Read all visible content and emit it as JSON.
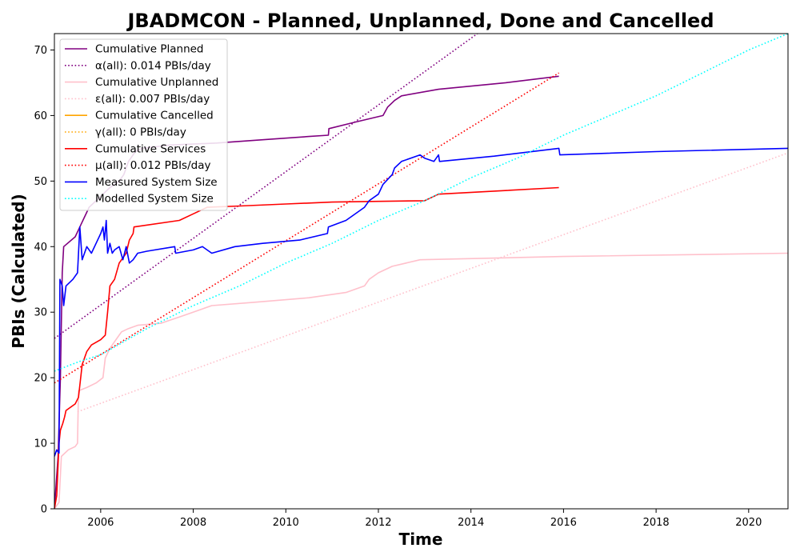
{
  "chart_data": {
    "type": "line",
    "title": "JBADMCON - Planned, Unplanned, Done  and Cancelled",
    "xlabel": "Time",
    "ylabel": "PBIs (Calculated)",
    "xlim": [
      2005.0,
      2020.85
    ],
    "ylim": [
      0,
      72.5
    ],
    "xticks": [
      2006,
      2008,
      2010,
      2012,
      2014,
      2016,
      2018,
      2020
    ],
    "yticks": [
      0,
      10,
      20,
      30,
      40,
      50,
      60,
      70
    ],
    "grid": false,
    "legend_position": "top-left",
    "series": [
      {
        "name": "Cumulative Planned",
        "color": "#800080",
        "style": "solid",
        "points": [
          [
            2005.0,
            0
          ],
          [
            2005.08,
            8
          ],
          [
            2005.13,
            20
          ],
          [
            2005.17,
            36
          ],
          [
            2005.2,
            40
          ],
          [
            2005.45,
            41.5
          ],
          [
            2005.55,
            43
          ],
          [
            2005.65,
            44.5
          ],
          [
            2005.75,
            46
          ],
          [
            2005.9,
            47
          ],
          [
            2006.05,
            48
          ],
          [
            2006.2,
            49
          ],
          [
            2006.4,
            50
          ],
          [
            2006.5,
            51
          ],
          [
            2006.6,
            53
          ],
          [
            2006.75,
            54.5
          ],
          [
            2006.9,
            55
          ],
          [
            2007.5,
            55.5
          ],
          [
            2008.5,
            55.8
          ],
          [
            2009.5,
            56.3
          ],
          [
            2010.5,
            56.8
          ],
          [
            2010.92,
            57
          ],
          [
            2010.93,
            58
          ],
          [
            2011.5,
            59
          ],
          [
            2012.1,
            60
          ],
          [
            2012.2,
            61.3
          ],
          [
            2012.35,
            62.3
          ],
          [
            2012.5,
            63
          ],
          [
            2013.3,
            64
          ],
          [
            2014.75,
            65
          ],
          [
            2015.9,
            66
          ]
        ]
      },
      {
        "name": "α(all): 0.014 PBIs/day",
        "color": "#800080",
        "style": "dotted",
        "points": [
          [
            2005.0,
            26
          ],
          [
            2014.2,
            72.8
          ]
        ]
      },
      {
        "name": "Cumulative Unplanned",
        "color": "#ffc0cb",
        "style": "solid",
        "points": [
          [
            2005.0,
            0
          ],
          [
            2005.1,
            1
          ],
          [
            2005.15,
            8
          ],
          [
            2005.3,
            9
          ],
          [
            2005.45,
            9.5
          ],
          [
            2005.5,
            10
          ],
          [
            2005.52,
            18
          ],
          [
            2005.7,
            18.5
          ],
          [
            2005.9,
            19.2
          ],
          [
            2006.05,
            20
          ],
          [
            2006.1,
            23
          ],
          [
            2006.2,
            24.5
          ],
          [
            2006.35,
            26
          ],
          [
            2006.45,
            27
          ],
          [
            2006.6,
            27.5
          ],
          [
            2006.8,
            28
          ],
          [
            2007.3,
            28.3
          ],
          [
            2007.8,
            29.5
          ],
          [
            2008.2,
            30.5
          ],
          [
            2008.4,
            31
          ],
          [
            2009.3,
            31.5
          ],
          [
            2010.5,
            32.2
          ],
          [
            2011.3,
            33
          ],
          [
            2011.7,
            34
          ],
          [
            2011.8,
            35
          ],
          [
            2012.0,
            36
          ],
          [
            2012.3,
            37
          ],
          [
            2012.9,
            38
          ],
          [
            2016.0,
            38.5
          ],
          [
            2020.85,
            39
          ]
        ]
      },
      {
        "name": "ε(all): 0.007 PBIs/day",
        "color": "#ffc0cb",
        "style": "dotted",
        "points": [
          [
            2005.5,
            14.8
          ],
          [
            2020.85,
            54.3
          ]
        ]
      },
      {
        "name": "Cumulative Cancelled",
        "color": "#ffa500",
        "style": "solid",
        "points": []
      },
      {
        "name": "γ(all): 0 PBIs/day",
        "color": "#ffa500",
        "style": "dotted",
        "points": []
      },
      {
        "name": "Cumulative Services",
        "color": "#ff0000",
        "style": "solid",
        "points": [
          [
            2005.0,
            0
          ],
          [
            2005.05,
            2
          ],
          [
            2005.1,
            10
          ],
          [
            2005.13,
            12
          ],
          [
            2005.18,
            13
          ],
          [
            2005.22,
            14
          ],
          [
            2005.25,
            15
          ],
          [
            2005.45,
            16
          ],
          [
            2005.52,
            17
          ],
          [
            2005.6,
            22
          ],
          [
            2005.7,
            24
          ],
          [
            2005.8,
            25
          ],
          [
            2006.0,
            25.8
          ],
          [
            2006.1,
            26.5
          ],
          [
            2006.15,
            30
          ],
          [
            2006.2,
            34
          ],
          [
            2006.3,
            35
          ],
          [
            2006.4,
            37.5
          ],
          [
            2006.55,
            39
          ],
          [
            2006.62,
            41
          ],
          [
            2006.7,
            42
          ],
          [
            2006.72,
            43
          ],
          [
            2007.7,
            44
          ],
          [
            2008.0,
            45
          ],
          [
            2008.3,
            46
          ],
          [
            2009.0,
            46.2
          ],
          [
            2010.0,
            46.5
          ],
          [
            2011.0,
            46.8
          ],
          [
            2012.0,
            46.9
          ],
          [
            2013.0,
            47
          ],
          [
            2013.3,
            48
          ],
          [
            2015.9,
            49
          ]
        ]
      },
      {
        "name": "μ(all): 0.012 PBIs/day",
        "color": "#ff0000",
        "style": "dotted",
        "points": [
          [
            2005.0,
            19.2
          ],
          [
            2015.9,
            66.5
          ]
        ]
      },
      {
        "name": "Measured System Size",
        "color": "#0000ff",
        "style": "solid",
        "points": [
          [
            2005.0,
            8
          ],
          [
            2005.05,
            9
          ],
          [
            2005.1,
            8.5
          ],
          [
            2005.12,
            35
          ],
          [
            2005.17,
            34
          ],
          [
            2005.2,
            31
          ],
          [
            2005.25,
            34
          ],
          [
            2005.4,
            35
          ],
          [
            2005.5,
            36
          ],
          [
            2005.55,
            43
          ],
          [
            2005.6,
            38
          ],
          [
            2005.7,
            40
          ],
          [
            2005.8,
            39
          ],
          [
            2005.9,
            40.5
          ],
          [
            2006.0,
            42
          ],
          [
            2006.05,
            43
          ],
          [
            2006.08,
            41
          ],
          [
            2006.12,
            44
          ],
          [
            2006.15,
            39
          ],
          [
            2006.2,
            40.5
          ],
          [
            2006.25,
            39
          ],
          [
            2006.3,
            39.5
          ],
          [
            2006.4,
            40
          ],
          [
            2006.48,
            38
          ],
          [
            2006.55,
            40
          ],
          [
            2006.62,
            37.5
          ],
          [
            2006.7,
            38
          ],
          [
            2006.8,
            39
          ],
          [
            2007.0,
            39.3
          ],
          [
            2007.6,
            40
          ],
          [
            2007.62,
            39
          ],
          [
            2008.0,
            39.5
          ],
          [
            2008.2,
            40
          ],
          [
            2008.4,
            39
          ],
          [
            2008.9,
            40
          ],
          [
            2009.5,
            40.5
          ],
          [
            2010.3,
            41
          ],
          [
            2010.9,
            42
          ],
          [
            2010.92,
            43
          ],
          [
            2011.3,
            44
          ],
          [
            2011.7,
            46
          ],
          [
            2011.8,
            47
          ],
          [
            2012.0,
            48
          ],
          [
            2012.1,
            49.5
          ],
          [
            2012.3,
            51
          ],
          [
            2012.35,
            52
          ],
          [
            2012.5,
            53
          ],
          [
            2012.9,
            54
          ],
          [
            2013.0,
            53.5
          ],
          [
            2013.2,
            53
          ],
          [
            2013.3,
            54
          ],
          [
            2013.32,
            53
          ],
          [
            2014.5,
            53.8
          ],
          [
            2015.9,
            55
          ],
          [
            2015.92,
            54
          ],
          [
            2018.0,
            54.5
          ],
          [
            2020.85,
            55
          ]
        ]
      },
      {
        "name": "Modelled System Size",
        "color": "#00ffff",
        "style": "dotted",
        "points": [
          [
            2005.0,
            21
          ],
          [
            2005.55,
            22.5
          ],
          [
            2006.0,
            23.5
          ],
          [
            2007.0,
            27.5
          ],
          [
            2008.0,
            31
          ],
          [
            2009.0,
            34
          ],
          [
            2010.0,
            37.5
          ],
          [
            2011.0,
            40.5
          ],
          [
            2012.0,
            44
          ],
          [
            2013.0,
            47
          ],
          [
            2014.0,
            50.5
          ],
          [
            2015.0,
            53.5
          ],
          [
            2016.0,
            57
          ],
          [
            2017.0,
            60
          ],
          [
            2018.0,
            63
          ],
          [
            2019.0,
            66.5
          ],
          [
            2020.0,
            70
          ],
          [
            2020.85,
            72.5
          ]
        ]
      }
    ]
  }
}
